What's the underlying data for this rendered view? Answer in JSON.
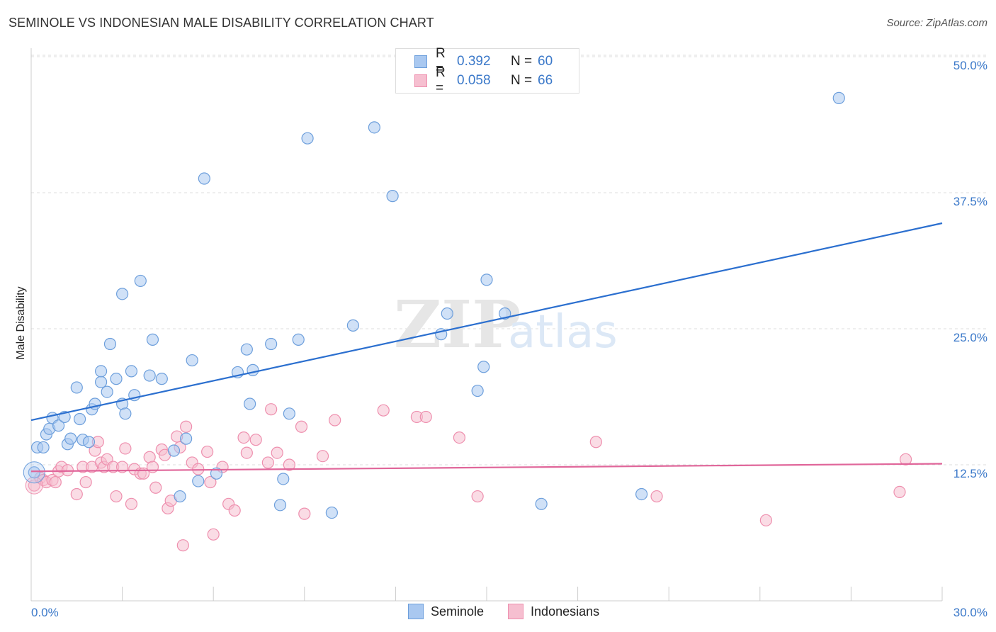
{
  "title": "SEMINOLE VS INDONESIAN MALE DISABILITY CORRELATION CHART",
  "source": "Source: ZipAtlas.com",
  "watermark": {
    "zip": "ZIP",
    "atlas": "atlas"
  },
  "legend_top": [
    {
      "r_label": "R =",
      "r_value": "0.392",
      "n_label": "N =",
      "n_value": "60"
    },
    {
      "r_label": "R =",
      "r_value": "0.058",
      "n_label": "N =",
      "n_value": "66"
    }
  ],
  "legend_bottom": [
    "Seminole",
    "Indonesians"
  ],
  "colors": {
    "seminole_fill": "#a9c8f0",
    "seminole_stroke": "#6d9fdc",
    "seminole_line": "#2b6fcf",
    "indonesian_fill": "#f6bfd0",
    "indonesian_stroke": "#ee8fae",
    "indonesian_line": "#e0669a",
    "tick_text": "#3a78c9",
    "grid": "#dddddd"
  },
  "chart_data": {
    "type": "scatter",
    "title": "SEMINOLE VS INDONESIAN MALE DISABILITY CORRELATION CHART",
    "xlabel": "",
    "ylabel": "Male Disability",
    "xlim": [
      0,
      30
    ],
    "ylim": [
      0,
      50
    ],
    "x_tick_labels": [
      "0.0%",
      "30.0%"
    ],
    "y_ticks": [
      12.5,
      25.0,
      37.5,
      50.0
    ],
    "y_tick_labels": [
      "12.5%",
      "25.0%",
      "37.5%",
      "50.0%"
    ],
    "grid": "horizontal dashed",
    "series": [
      {
        "name": "Seminole",
        "r": 0.392,
        "n": 60,
        "trend": {
          "x": [
            0,
            30
          ],
          "y": [
            16.6,
            34.7
          ]
        },
        "points": [
          [
            0.2,
            14.1
          ],
          [
            0.4,
            14.1
          ],
          [
            0.5,
            15.3
          ],
          [
            0.6,
            15.8
          ],
          [
            0.7,
            16.8
          ],
          [
            0.9,
            16.1
          ],
          [
            1.1,
            16.9
          ],
          [
            1.2,
            14.4
          ],
          [
            1.3,
            14.9
          ],
          [
            1.5,
            19.6
          ],
          [
            1.6,
            16.7
          ],
          [
            1.7,
            14.8
          ],
          [
            1.9,
            14.6
          ],
          [
            2.0,
            17.6
          ],
          [
            2.1,
            18.1
          ],
          [
            2.3,
            20.1
          ],
          [
            2.3,
            21.1
          ],
          [
            2.5,
            19.2
          ],
          [
            2.6,
            23.6
          ],
          [
            2.8,
            20.4
          ],
          [
            3.0,
            18.1
          ],
          [
            3.0,
            28.2
          ],
          [
            3.1,
            17.2
          ],
          [
            3.3,
            21.1
          ],
          [
            3.4,
            18.9
          ],
          [
            3.6,
            29.4
          ],
          [
            3.9,
            20.7
          ],
          [
            4.0,
            24.0
          ],
          [
            4.3,
            20.4
          ],
          [
            4.7,
            13.8
          ],
          [
            4.9,
            9.6
          ],
          [
            5.1,
            14.9
          ],
          [
            5.3,
            22.1
          ],
          [
            5.5,
            11.0
          ],
          [
            5.7,
            38.8
          ],
          [
            6.1,
            11.7
          ],
          [
            6.8,
            21.0
          ],
          [
            7.1,
            23.1
          ],
          [
            7.2,
            18.1
          ],
          [
            7.3,
            21.2
          ],
          [
            7.9,
            23.6
          ],
          [
            8.2,
            8.8
          ],
          [
            8.3,
            11.2
          ],
          [
            8.5,
            17.2
          ],
          [
            8.8,
            24.0
          ],
          [
            9.1,
            42.5
          ],
          [
            9.9,
            8.1
          ],
          [
            10.6,
            25.3
          ],
          [
            11.3,
            43.5
          ],
          [
            11.9,
            37.2
          ],
          [
            13.5,
            24.5
          ],
          [
            13.7,
            26.4
          ],
          [
            14.7,
            19.3
          ],
          [
            14.9,
            21.5
          ],
          [
            15.0,
            29.5
          ],
          [
            15.6,
            26.4
          ],
          [
            16.8,
            8.9
          ],
          [
            20.1,
            9.8
          ],
          [
            26.6,
            46.2
          ],
          [
            0.1,
            11.8
          ]
        ]
      },
      {
        "name": "Indonesians",
        "r": 0.058,
        "n": 66,
        "trend": {
          "x": [
            0,
            30
          ],
          "y": [
            11.9,
            12.6
          ]
        },
        "points": [
          [
            0.1,
            10.6
          ],
          [
            0.3,
            11.3
          ],
          [
            0.4,
            11.1
          ],
          [
            0.5,
            10.9
          ],
          [
            0.7,
            11.1
          ],
          [
            0.8,
            10.9
          ],
          [
            0.9,
            11.9
          ],
          [
            1.0,
            12.3
          ],
          [
            1.2,
            12.0
          ],
          [
            1.5,
            9.8
          ],
          [
            1.7,
            12.3
          ],
          [
            1.8,
            10.9
          ],
          [
            2.0,
            12.3
          ],
          [
            2.1,
            13.8
          ],
          [
            2.2,
            14.6
          ],
          [
            2.3,
            12.7
          ],
          [
            2.4,
            12.3
          ],
          [
            2.5,
            13.0
          ],
          [
            2.7,
            12.3
          ],
          [
            2.8,
            9.6
          ],
          [
            3.0,
            12.3
          ],
          [
            3.1,
            14.0
          ],
          [
            3.3,
            8.9
          ],
          [
            3.4,
            12.1
          ],
          [
            3.6,
            11.7
          ],
          [
            3.7,
            11.7
          ],
          [
            3.9,
            13.2
          ],
          [
            4.0,
            12.3
          ],
          [
            4.1,
            10.4
          ],
          [
            4.3,
            13.9
          ],
          [
            4.4,
            13.4
          ],
          [
            4.5,
            8.5
          ],
          [
            4.6,
            9.2
          ],
          [
            4.8,
            15.1
          ],
          [
            4.9,
            14.1
          ],
          [
            5.0,
            5.1
          ],
          [
            5.1,
            16.0
          ],
          [
            5.3,
            12.7
          ],
          [
            5.5,
            12.1
          ],
          [
            5.8,
            13.7
          ],
          [
            5.9,
            10.9
          ],
          [
            6.0,
            6.1
          ],
          [
            6.3,
            12.3
          ],
          [
            6.5,
            8.9
          ],
          [
            6.7,
            8.3
          ],
          [
            7.0,
            15.0
          ],
          [
            7.1,
            13.6
          ],
          [
            7.4,
            14.8
          ],
          [
            7.8,
            12.7
          ],
          [
            7.9,
            17.6
          ],
          [
            8.1,
            13.6
          ],
          [
            8.5,
            12.5
          ],
          [
            8.9,
            16.0
          ],
          [
            9.0,
            8.0
          ],
          [
            9.6,
            13.3
          ],
          [
            10.0,
            16.6
          ],
          [
            11.6,
            17.5
          ],
          [
            12.7,
            16.9
          ],
          [
            13.0,
            16.9
          ],
          [
            14.1,
            15.0
          ],
          [
            14.7,
            9.6
          ],
          [
            18.6,
            14.6
          ],
          [
            20.6,
            9.6
          ],
          [
            24.2,
            7.4
          ],
          [
            28.6,
            10.0
          ],
          [
            28.8,
            13.0
          ]
        ]
      }
    ]
  }
}
